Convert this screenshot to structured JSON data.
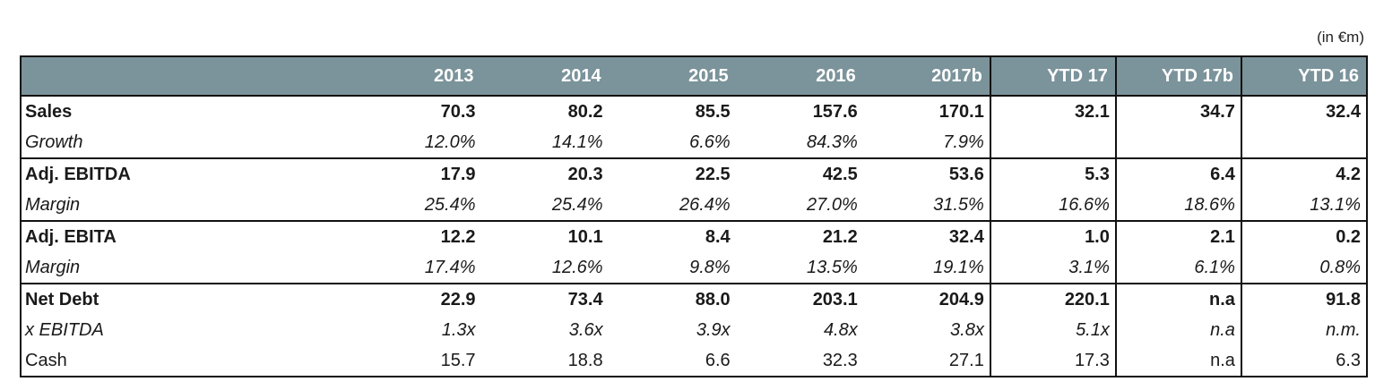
{
  "unit_note": "(in €m)",
  "header": {
    "label": "",
    "columns": [
      "2013",
      "2014",
      "2015",
      "2016",
      "2017b",
      "YTD 17",
      "YTD 17b",
      "YTD 16"
    ]
  },
  "rows": [
    {
      "label": "Sales",
      "values": [
        "70.3",
        "80.2",
        "85.5",
        "157.6",
        "170.1",
        "32.1",
        "34.7",
        "32.4"
      ]
    },
    {
      "label": "Growth",
      "values": [
        "12.0%",
        "14.1%",
        "6.6%",
        "84.3%",
        "7.9%",
        "",
        "",
        ""
      ]
    },
    {
      "label": "Adj. EBITDA",
      "values": [
        "17.9",
        "20.3",
        "22.5",
        "42.5",
        "53.6",
        "5.3",
        "6.4",
        "4.2"
      ]
    },
    {
      "label": "Margin",
      "values": [
        "25.4%",
        "25.4%",
        "26.4%",
        "27.0%",
        "31.5%",
        "16.6%",
        "18.6%",
        "13.1%"
      ]
    },
    {
      "label": "Adj. EBITA",
      "values": [
        "12.2",
        "10.1",
        "8.4",
        "21.2",
        "32.4",
        "1.0",
        "2.1",
        "0.2"
      ]
    },
    {
      "label": "Margin",
      "values": [
        "17.4%",
        "12.6%",
        "9.8%",
        "13.5%",
        "19.1%",
        "3.1%",
        "6.1%",
        "0.8%"
      ]
    },
    {
      "label": "Net Debt",
      "values": [
        "22.9",
        "73.4",
        "88.0",
        "203.1",
        "204.9",
        "220.1",
        "n.a",
        "91.8"
      ]
    },
    {
      "label": "x EBITDA",
      "values": [
        "1.3x",
        "3.6x",
        "3.9x",
        "4.8x",
        "3.8x",
        "5.1x",
        "n.a",
        "n.m."
      ]
    },
    {
      "label": "Cash",
      "values": [
        "15.7",
        "18.8",
        "6.6",
        "32.3",
        "27.1",
        "17.3",
        "n.a",
        "6.3"
      ]
    }
  ]
}
